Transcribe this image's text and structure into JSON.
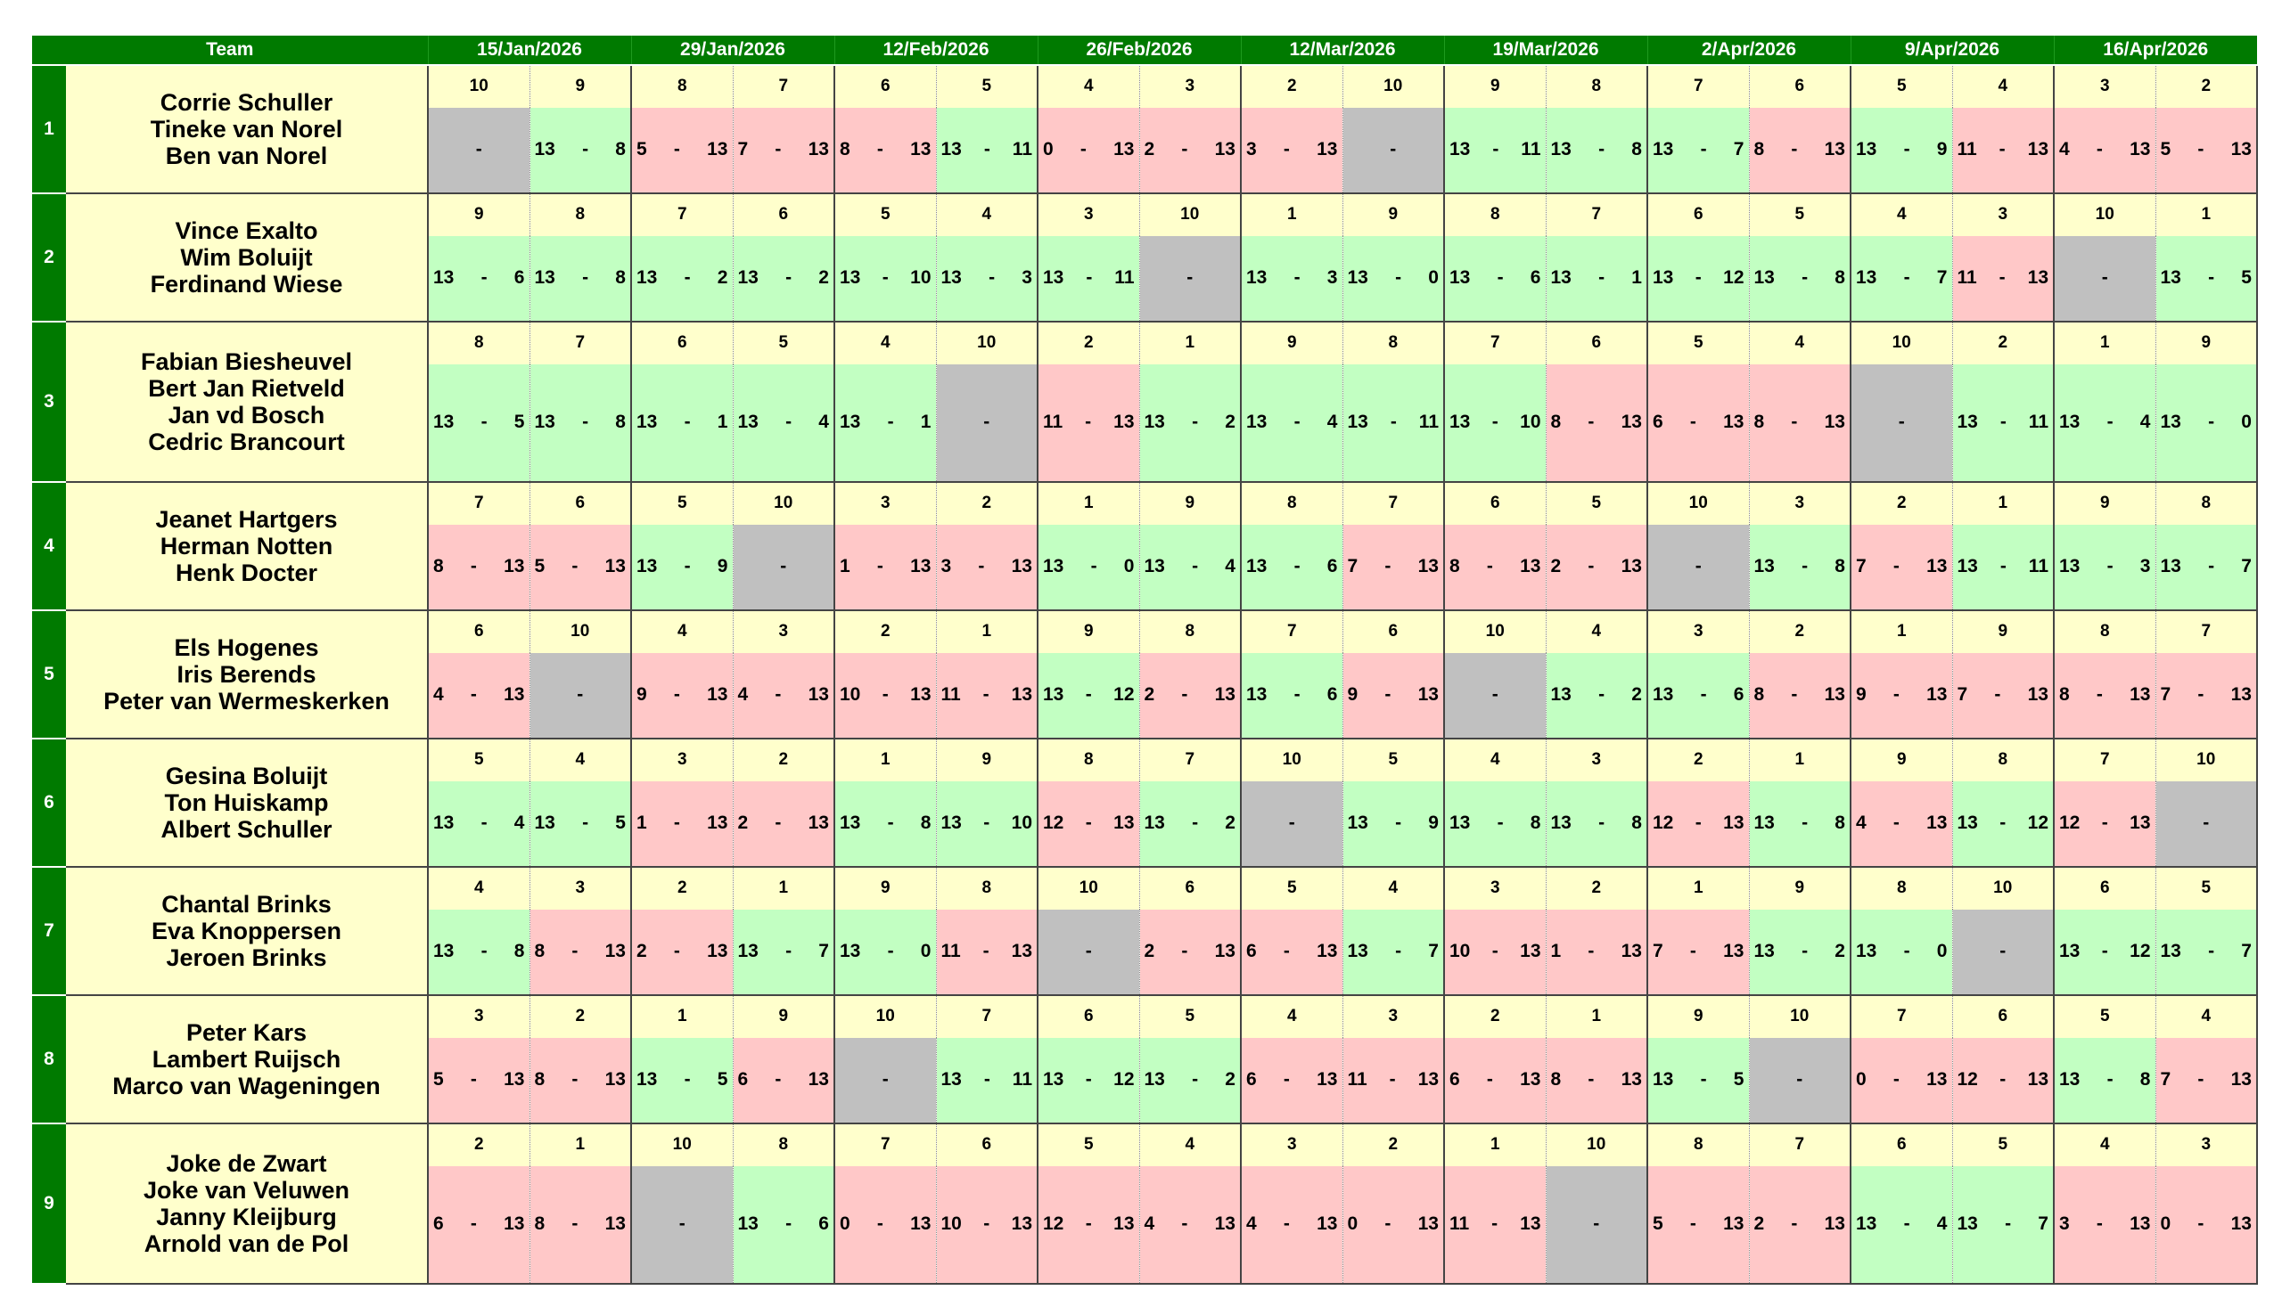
{
  "header": {
    "team_label": "Team",
    "dates": [
      "15/Jan/2026",
      "29/Jan/2026",
      "12/Feb/2026",
      "26/Feb/2026",
      "12/Mar/2026",
      "19/Mar/2026",
      "2/Apr/2026",
      "9/Apr/2026",
      "16/Apr/2026"
    ]
  },
  "colors": {
    "header_green": "#007a00",
    "names_bg": "#ffffcc",
    "win": "#c2ffc2",
    "loss": "#ffc8c8",
    "bye": "#c0c0c0"
  },
  "teams": [
    {
      "num": "1",
      "players": [
        "Corrie Schuller",
        "Tineke van Norel",
        "Ben van Norel"
      ],
      "opponents": [
        "10",
        "9",
        "8",
        "7",
        "6",
        "5",
        "4",
        "3",
        "2",
        "10",
        "9",
        "8",
        "7",
        "6",
        "5",
        "4",
        "3",
        "2"
      ],
      "scores": [
        [
          "",
          ""
        ],
        [
          "13",
          "8"
        ],
        [
          "5",
          "13"
        ],
        [
          "7",
          "13"
        ],
        [
          "8",
          "13"
        ],
        [
          "13",
          "11"
        ],
        [
          "0",
          "13"
        ],
        [
          "2",
          "13"
        ],
        [
          "3",
          "13"
        ],
        [
          "",
          ""
        ],
        [
          "13",
          "11"
        ],
        [
          "13",
          "8"
        ],
        [
          "13",
          "7"
        ],
        [
          "8",
          "13"
        ],
        [
          "13",
          "9"
        ],
        [
          "11",
          "13"
        ],
        [
          "4",
          "13"
        ],
        [
          "5",
          "13"
        ]
      ]
    },
    {
      "num": "2",
      "players": [
        "Vince Exalto",
        "Wim Boluijt",
        "Ferdinand Wiese"
      ],
      "opponents": [
        "9",
        "8",
        "7",
        "6",
        "5",
        "4",
        "3",
        "10",
        "1",
        "9",
        "8",
        "7",
        "6",
        "5",
        "4",
        "3",
        "10",
        "1"
      ],
      "scores": [
        [
          "13",
          "6"
        ],
        [
          "13",
          "8"
        ],
        [
          "13",
          "2"
        ],
        [
          "13",
          "2"
        ],
        [
          "13",
          "10"
        ],
        [
          "13",
          "3"
        ],
        [
          "13",
          "11"
        ],
        [
          "",
          ""
        ],
        [
          "13",
          "3"
        ],
        [
          "13",
          "0"
        ],
        [
          "13",
          "6"
        ],
        [
          "13",
          "1"
        ],
        [
          "13",
          "12"
        ],
        [
          "13",
          "8"
        ],
        [
          "13",
          "7"
        ],
        [
          "11",
          "13"
        ],
        [
          "",
          ""
        ],
        [
          "13",
          "5"
        ]
      ]
    },
    {
      "num": "3",
      "players": [
        "Fabian Biesheuvel",
        "Bert Jan Rietveld",
        "Jan vd Bosch",
        "Cedric Brancourt"
      ],
      "opponents": [
        "8",
        "7",
        "6",
        "5",
        "4",
        "10",
        "2",
        "1",
        "9",
        "8",
        "7",
        "6",
        "5",
        "4",
        "10",
        "2",
        "1",
        "9"
      ],
      "scores": [
        [
          "13",
          "5"
        ],
        [
          "13",
          "8"
        ],
        [
          "13",
          "1"
        ],
        [
          "13",
          "4"
        ],
        [
          "13",
          "1"
        ],
        [
          "",
          ""
        ],
        [
          "11",
          "13"
        ],
        [
          "13",
          "2"
        ],
        [
          "13",
          "4"
        ],
        [
          "13",
          "11"
        ],
        [
          "13",
          "10"
        ],
        [
          "8",
          "13"
        ],
        [
          "6",
          "13"
        ],
        [
          "8",
          "13"
        ],
        [
          "",
          ""
        ],
        [
          "13",
          "11"
        ],
        [
          "13",
          "4"
        ],
        [
          "13",
          "0"
        ]
      ]
    },
    {
      "num": "4",
      "players": [
        "Jeanet Hartgers",
        "Herman Notten",
        "Henk Docter"
      ],
      "opponents": [
        "7",
        "6",
        "5",
        "10",
        "3",
        "2",
        "1",
        "9",
        "8",
        "7",
        "6",
        "5",
        "10",
        "3",
        "2",
        "1",
        "9",
        "8"
      ],
      "scores": [
        [
          "8",
          "13"
        ],
        [
          "5",
          "13"
        ],
        [
          "13",
          "9"
        ],
        [
          "",
          ""
        ],
        [
          "1",
          "13"
        ],
        [
          "3",
          "13"
        ],
        [
          "13",
          "0"
        ],
        [
          "13",
          "4"
        ],
        [
          "13",
          "6"
        ],
        [
          "7",
          "13"
        ],
        [
          "8",
          "13"
        ],
        [
          "2",
          "13"
        ],
        [
          "",
          ""
        ],
        [
          "13",
          "8"
        ],
        [
          "7",
          "13"
        ],
        [
          "13",
          "11"
        ],
        [
          "13",
          "3"
        ],
        [
          "13",
          "7"
        ]
      ]
    },
    {
      "num": "5",
      "players": [
        "Els Hogenes",
        "Iris Berends",
        "Peter van Wermeskerken"
      ],
      "opponents": [
        "6",
        "10",
        "4",
        "3",
        "2",
        "1",
        "9",
        "8",
        "7",
        "6",
        "10",
        "4",
        "3",
        "2",
        "1",
        "9",
        "8",
        "7"
      ],
      "scores": [
        [
          "4",
          "13"
        ],
        [
          "",
          ""
        ],
        [
          "9",
          "13"
        ],
        [
          "4",
          "13"
        ],
        [
          "10",
          "13"
        ],
        [
          "11",
          "13"
        ],
        [
          "13",
          "12"
        ],
        [
          "2",
          "13"
        ],
        [
          "13",
          "6"
        ],
        [
          "9",
          "13"
        ],
        [
          "",
          ""
        ],
        [
          "13",
          "2"
        ],
        [
          "13",
          "6"
        ],
        [
          "8",
          "13"
        ],
        [
          "9",
          "13"
        ],
        [
          "7",
          "13"
        ],
        [
          "8",
          "13"
        ],
        [
          "7",
          "13"
        ]
      ]
    },
    {
      "num": "6",
      "players": [
        "Gesina Boluijt",
        "Ton Huiskamp",
        "Albert Schuller"
      ],
      "opponents": [
        "5",
        "4",
        "3",
        "2",
        "1",
        "9",
        "8",
        "7",
        "10",
        "5",
        "4",
        "3",
        "2",
        "1",
        "9",
        "8",
        "7",
        "10"
      ],
      "scores": [
        [
          "13",
          "4"
        ],
        [
          "13",
          "5"
        ],
        [
          "1",
          "13"
        ],
        [
          "2",
          "13"
        ],
        [
          "13",
          "8"
        ],
        [
          "13",
          "10"
        ],
        [
          "12",
          "13"
        ],
        [
          "13",
          "2"
        ],
        [
          "",
          ""
        ],
        [
          "13",
          "9"
        ],
        [
          "13",
          "8"
        ],
        [
          "13",
          "8"
        ],
        [
          "12",
          "13"
        ],
        [
          "13",
          "8"
        ],
        [
          "4",
          "13"
        ],
        [
          "13",
          "12"
        ],
        [
          "12",
          "13"
        ],
        [
          "",
          ""
        ]
      ]
    },
    {
      "num": "7",
      "players": [
        "Chantal Brinks",
        "Eva Knoppersen",
        "Jeroen Brinks"
      ],
      "opponents": [
        "4",
        "3",
        "2",
        "1",
        "9",
        "8",
        "10",
        "6",
        "5",
        "4",
        "3",
        "2",
        "1",
        "9",
        "8",
        "10",
        "6",
        "5"
      ],
      "scores": [
        [
          "13",
          "8"
        ],
        [
          "8",
          "13"
        ],
        [
          "2",
          "13"
        ],
        [
          "13",
          "7"
        ],
        [
          "13",
          "0"
        ],
        [
          "11",
          "13"
        ],
        [
          "",
          ""
        ],
        [
          "2",
          "13"
        ],
        [
          "6",
          "13"
        ],
        [
          "13",
          "7"
        ],
        [
          "10",
          "13"
        ],
        [
          "1",
          "13"
        ],
        [
          "7",
          "13"
        ],
        [
          "13",
          "2"
        ],
        [
          "13",
          "0"
        ],
        [
          "",
          ""
        ],
        [
          "13",
          "12"
        ],
        [
          "13",
          "7"
        ]
      ]
    },
    {
      "num": "8",
      "players": [
        "Peter Kars",
        "Lambert Ruijsch",
        "Marco van Wageningen"
      ],
      "opponents": [
        "3",
        "2",
        "1",
        "9",
        "10",
        "7",
        "6",
        "5",
        "4",
        "3",
        "2",
        "1",
        "9",
        "10",
        "7",
        "6",
        "5",
        "4"
      ],
      "scores": [
        [
          "5",
          "13"
        ],
        [
          "8",
          "13"
        ],
        [
          "13",
          "5"
        ],
        [
          "6",
          "13"
        ],
        [
          "",
          ""
        ],
        [
          "13",
          "11"
        ],
        [
          "13",
          "12"
        ],
        [
          "13",
          "2"
        ],
        [
          "6",
          "13"
        ],
        [
          "11",
          "13"
        ],
        [
          "6",
          "13"
        ],
        [
          "8",
          "13"
        ],
        [
          "13",
          "5"
        ],
        [
          "",
          ""
        ],
        [
          "0",
          "13"
        ],
        [
          "12",
          "13"
        ],
        [
          "13",
          "8"
        ],
        [
          "7",
          "13"
        ]
      ]
    },
    {
      "num": "9",
      "players": [
        "Joke de Zwart",
        "Joke van Veluwen",
        "Janny Kleijburg",
        "Arnold van de Pol"
      ],
      "opponents": [
        "2",
        "1",
        "10",
        "8",
        "7",
        "6",
        "5",
        "4",
        "3",
        "2",
        "1",
        "10",
        "8",
        "7",
        "6",
        "5",
        "4",
        "3"
      ],
      "scores": [
        [
          "6",
          "13"
        ],
        [
          "8",
          "13"
        ],
        [
          "",
          ""
        ],
        [
          "13",
          "6"
        ],
        [
          "0",
          "13"
        ],
        [
          "10",
          "13"
        ],
        [
          "12",
          "13"
        ],
        [
          "4",
          "13"
        ],
        [
          "4",
          "13"
        ],
        [
          "0",
          "13"
        ],
        [
          "11",
          "13"
        ],
        [
          "",
          ""
        ],
        [
          "5",
          "13"
        ],
        [
          "2",
          "13"
        ],
        [
          "13",
          "4"
        ],
        [
          "13",
          "7"
        ],
        [
          "3",
          "13"
        ],
        [
          "0",
          "13"
        ]
      ]
    }
  ]
}
